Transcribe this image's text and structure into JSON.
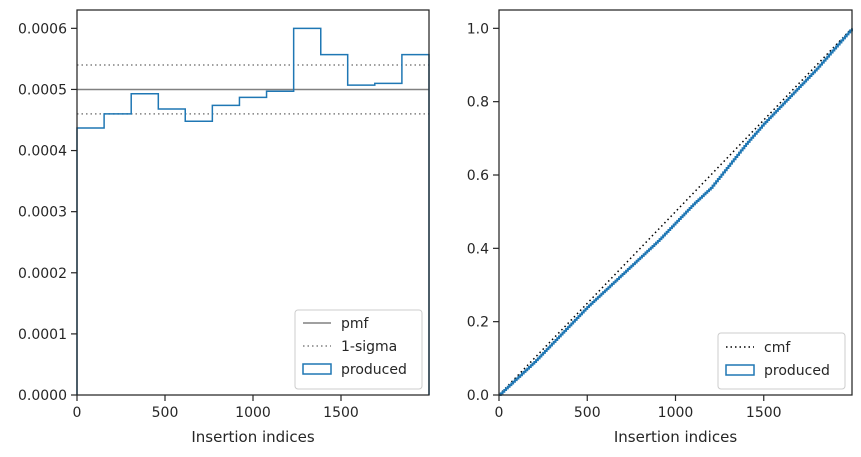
{
  "colors": {
    "histogram": "#1f77b4",
    "pmf": "#808080",
    "sigma": "#808080",
    "cmf": "#000000",
    "axes": "#262626"
  },
  "chart_data": [
    {
      "type": "step-histogram",
      "xlabel": "Insertion indices",
      "ylabel": "",
      "xlim": [
        0,
        2000
      ],
      "ylim": [
        0,
        0.00063
      ],
      "x_ticks": [
        0,
        500,
        1000,
        1500
      ],
      "x_tick_labels": [
        "0",
        "500",
        "1000",
        "1500"
      ],
      "y_ticks": [
        0,
        0.0001,
        0.0002,
        0.0003,
        0.0004,
        0.0005,
        0.0006
      ],
      "y_tick_labels": [
        "0.0000",
        "0.0001",
        "0.0002",
        "0.0003",
        "0.0004",
        "0.0005",
        "0.0006"
      ],
      "bin_edges": [
        0,
        154,
        308,
        462,
        615,
        769,
        923,
        1077,
        1231,
        1385,
        1538,
        1692,
        1846,
        2000
      ],
      "values": [
        0.000437,
        0.00046,
        0.000493,
        0.000468,
        0.000448,
        0.000474,
        0.000487,
        0.000497,
        0.0006,
        0.000557,
        0.000507,
        0.00051,
        0.000557
      ],
      "pmf": 0.0005,
      "sigma": [
        0.00046,
        0.00054
      ],
      "legend": {
        "position": "lower right",
        "entries": [
          {
            "label": "pmf",
            "style": "solid-line"
          },
          {
            "label": "1-sigma",
            "style": "dotted-line"
          },
          {
            "label": "produced",
            "style": "patch"
          }
        ]
      },
      "grid": false
    },
    {
      "type": "line",
      "xlabel": "Insertion indices",
      "ylabel": "",
      "xlim": [
        0,
        2000
      ],
      "ylim": [
        0,
        1.05
      ],
      "x_ticks": [
        0,
        500,
        1000,
        1500
      ],
      "x_tick_labels": [
        "0",
        "500",
        "1000",
        "1500"
      ],
      "y_ticks": [
        0,
        0.2,
        0.4,
        0.6,
        0.8,
        1.0
      ],
      "y_tick_labels": [
        "0.0",
        "0.2",
        "0.4",
        "0.6",
        "0.8",
        "1.0"
      ],
      "series": [
        {
          "name": "cmf",
          "style": "dotted",
          "x": [
            0,
            2000
          ],
          "y": [
            0,
            1.0
          ]
        },
        {
          "name": "produced",
          "style": "solid",
          "x": [
            0,
            100,
            200,
            300,
            400,
            500,
            600,
            700,
            800,
            900,
            1000,
            1100,
            1200,
            1300,
            1400,
            1500,
            1600,
            1700,
            1800,
            1900,
            2000
          ],
          "y": [
            0,
            0.045,
            0.09,
            0.14,
            0.19,
            0.24,
            0.285,
            0.33,
            0.375,
            0.42,
            0.47,
            0.52,
            0.565,
            0.625,
            0.685,
            0.74,
            0.79,
            0.84,
            0.89,
            0.945,
            1.0
          ]
        }
      ],
      "legend": {
        "position": "lower right",
        "entries": [
          {
            "label": "cmf",
            "style": "dotted-line"
          },
          {
            "label": "produced",
            "style": "patch"
          }
        ]
      },
      "grid": false
    }
  ]
}
